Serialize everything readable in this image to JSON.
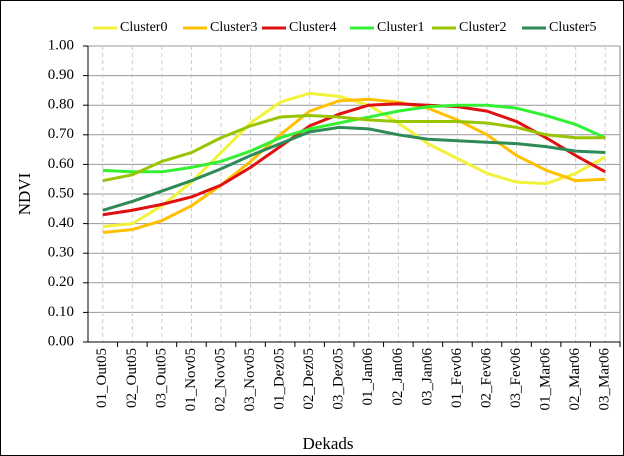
{
  "chart_data": {
    "type": "line",
    "x_label": "Dekads",
    "y_label": "NDVI",
    "categories": [
      "01_Out05",
      "02_Out05",
      "03_Out05",
      "01_Nov05",
      "02_Nov05",
      "03_Nov05",
      "01_Dez05",
      "02_Dez05",
      "03_Dez05",
      "01_Jan06",
      "02_Jan06",
      "03_Jan06",
      "01_Fev06",
      "02_Fev06",
      "03_Fev06",
      "01_Mar06",
      "02_Mar06",
      "03_Mar06"
    ],
    "series": [
      {
        "name": "Cluster0",
        "color": "#f2f23a",
        "values": [
          0.39,
          0.4,
          0.46,
          0.54,
          0.64,
          0.74,
          0.81,
          0.84,
          0.83,
          0.8,
          0.74,
          0.67,
          0.62,
          0.57,
          0.54,
          0.535,
          0.57,
          0.625
        ]
      },
      {
        "name": "Cluster3",
        "color": "#ffc000",
        "values": [
          0.37,
          0.38,
          0.41,
          0.46,
          0.53,
          0.61,
          0.7,
          0.78,
          0.815,
          0.82,
          0.81,
          0.79,
          0.75,
          0.7,
          0.63,
          0.58,
          0.545,
          0.55
        ]
      },
      {
        "name": "Cluster4",
        "color": "#e01010",
        "values": [
          0.43,
          0.445,
          0.465,
          0.49,
          0.53,
          0.59,
          0.66,
          0.73,
          0.77,
          0.8,
          0.805,
          0.8,
          0.795,
          0.78,
          0.745,
          0.69,
          0.63,
          0.575
        ]
      },
      {
        "name": "Cluster1",
        "color": "#33f033",
        "values": [
          0.58,
          0.575,
          0.575,
          0.59,
          0.61,
          0.645,
          0.69,
          0.72,
          0.74,
          0.76,
          0.78,
          0.795,
          0.8,
          0.8,
          0.79,
          0.765,
          0.735,
          0.69
        ]
      },
      {
        "name": "Cluster2",
        "color": "#99c400",
        "values": [
          0.545,
          0.565,
          0.61,
          0.64,
          0.69,
          0.73,
          0.76,
          0.765,
          0.76,
          0.75,
          0.745,
          0.745,
          0.745,
          0.74,
          0.725,
          0.7,
          0.69,
          0.69
        ]
      },
      {
        "name": "Cluster5",
        "color": "#2e8b57",
        "values": [
          0.445,
          0.475,
          0.51,
          0.545,
          0.585,
          0.63,
          0.67,
          0.71,
          0.725,
          0.72,
          0.7,
          0.685,
          0.68,
          0.675,
          0.67,
          0.66,
          0.645,
          0.64
        ]
      }
    ],
    "ylim": [
      0,
      1
    ],
    "yticks": [
      {
        "value": 0,
        "label": "0.00"
      },
      {
        "value": 0.1,
        "label": "0.10"
      },
      {
        "value": 0.2,
        "label": "0.20"
      },
      {
        "value": 0.3,
        "label": "0.30"
      },
      {
        "value": 0.4,
        "label": "0.40"
      },
      {
        "value": 0.5,
        "label": "0.50"
      },
      {
        "value": 0.6,
        "label": "0.60"
      },
      {
        "value": 0.7,
        "label": "0.70"
      },
      {
        "value": 0.8,
        "label": "0.80"
      },
      {
        "value": 0.9,
        "label": "0.90"
      },
      {
        "value": 1,
        "label": "1.00"
      }
    ],
    "grid": true,
    "legend": "top"
  }
}
